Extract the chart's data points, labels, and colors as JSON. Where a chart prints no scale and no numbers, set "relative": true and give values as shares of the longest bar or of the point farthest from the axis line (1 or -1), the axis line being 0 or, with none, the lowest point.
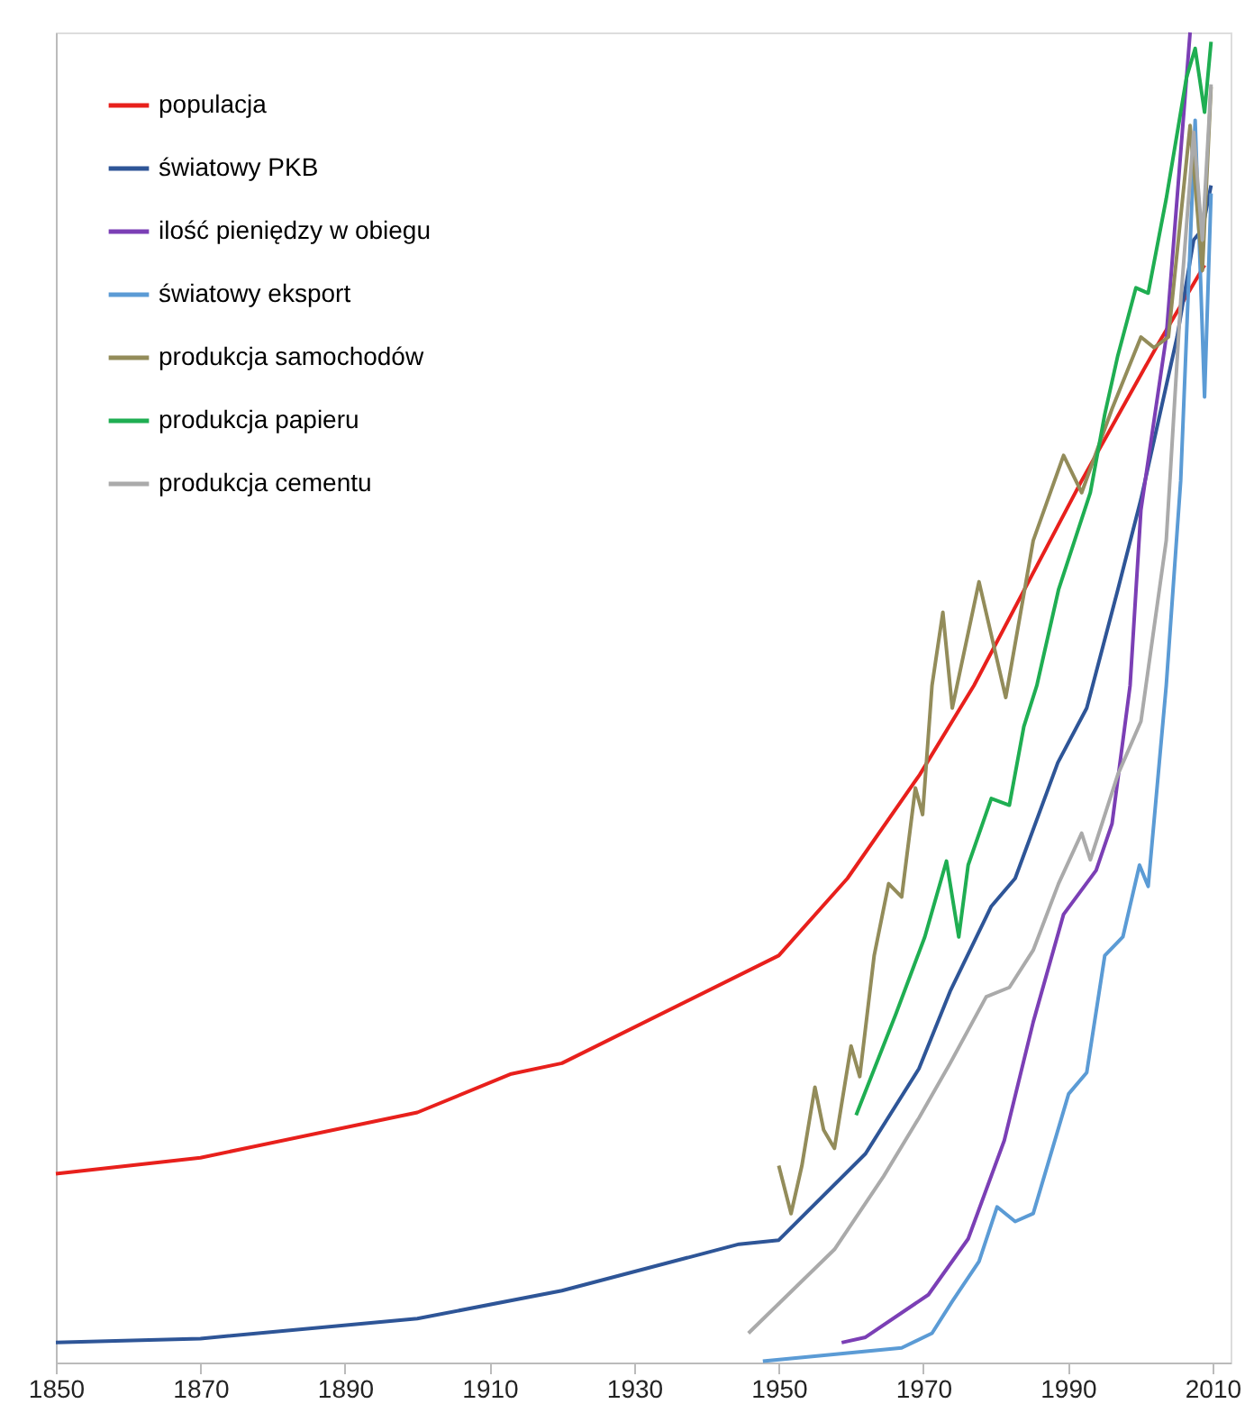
{
  "chart_data": {
    "type": "line",
    "relative": true,
    "xlim": [
      1850,
      2012.5
    ],
    "xticks": [
      1850,
      1870,
      1890,
      1910,
      1930,
      1950,
      1970,
      1990,
      2010
    ],
    "grid": false,
    "legend": "top left",
    "marker": "none",
    "line_style": "solid",
    "series": [
      {
        "name": "populacja",
        "color": "#e8201c",
        "x": [
          1850,
          1870,
          1900,
          1913,
          1920,
          1950,
          1959.5,
          1969.5,
          1977,
          1991.9,
          2002.6,
          2008.9
        ],
        "values": [
          0.142,
          0.154,
          0.188,
          0.217,
          0.225,
          0.306,
          0.364,
          0.442,
          0.509,
          0.663,
          0.767,
          0.825
        ]
      },
      {
        "name": "światowy PKB",
        "color": "#2e5597",
        "x": [
          1850,
          1870,
          1900,
          1920,
          1944.5,
          1950,
          1962,
          1969.4,
          1973.7,
          1979.4,
          1982.7,
          1988.6,
          1992.6,
          1996.9,
          2000.1,
          2005.1,
          2007.4,
          2008.6,
          2009.8
        ],
        "values": [
          0.015,
          0.018,
          0.033,
          0.054,
          0.089,
          0.092,
          0.157,
          0.221,
          0.279,
          0.343,
          0.364,
          0.451,
          0.492,
          0.581,
          0.649,
          0.771,
          0.844,
          0.852,
          0.885
        ]
      },
      {
        "name": "ilość pieniędzy w obiegu",
        "color": "#7b3fb5",
        "x": [
          1958.7,
          1962,
          1970.7,
          1976.2,
          1981.2,
          1985.2,
          1989.4,
          1993.9,
          1996.1,
          1998.6,
          2000.1,
          2003.6,
          2006.9
        ],
        "values": [
          0.015,
          0.019,
          0.051,
          0.093,
          0.167,
          0.256,
          0.337,
          0.37,
          0.405,
          0.509,
          0.641,
          0.771,
          1.0
        ]
      },
      {
        "name": "światowy eksport",
        "color": "#5b9bd5",
        "x": [
          1947.8,
          1967,
          1971.2,
          1974,
          1977.7,
          1980.2,
          1982.7,
          1985.2,
          1990.1,
          1992.6,
          1995.1,
          1997.6,
          1999.9,
          2001.1,
          2003.6,
          2005.6,
          2007.6,
          2008.9,
          2009.8
        ],
        "values": [
          0.001,
          0.011,
          0.022,
          0.046,
          0.076,
          0.117,
          0.106,
          0.112,
          0.202,
          0.218,
          0.306,
          0.32,
          0.374,
          0.358,
          0.509,
          0.663,
          0.934,
          0.726,
          0.879
        ]
      },
      {
        "name": "produkcja samochodów",
        "color": "#938c5a",
        "x": [
          1950,
          1951.7,
          1953.2,
          1955,
          1956.2,
          1957.7,
          1960,
          1961.2,
          1963.2,
          1965.2,
          1967,
          1968.9,
          1969.9,
          1971.2,
          1972.7,
          1974,
          1977.7,
          1981.4,
          1985.2,
          1989.4,
          1991.9,
          1996.1,
          2000.1,
          2001.9,
          2003.9,
          2006.9,
          2008.6,
          2009.8
        ],
        "values": [
          0.148,
          0.112,
          0.148,
          0.207,
          0.175,
          0.161,
          0.238,
          0.215,
          0.306,
          0.36,
          0.35,
          0.432,
          0.412,
          0.509,
          0.564,
          0.492,
          0.587,
          0.5,
          0.618,
          0.682,
          0.654,
          0.717,
          0.771,
          0.763,
          0.771,
          0.93,
          0.821,
          0.959
        ]
      },
      {
        "name": "produkcja papieru",
        "color": "#1fae52",
        "x": [
          1960.7,
          1966.2,
          1970.2,
          1973.2,
          1974.9,
          1976.2,
          1979.4,
          1981.9,
          1983.9,
          1985.7,
          1988.7,
          1993.1,
          1995.1,
          1996.9,
          1999.4,
          2001.1,
          2003.6,
          2006.4,
          2007.6,
          2008.9,
          2009.8
        ],
        "values": [
          0.186,
          0.262,
          0.32,
          0.377,
          0.32,
          0.374,
          0.424,
          0.419,
          0.478,
          0.509,
          0.581,
          0.654,
          0.713,
          0.757,
          0.808,
          0.804,
          0.875,
          0.966,
          0.988,
          0.94,
          0.993
        ]
      },
      {
        "name": "produkcja cementu",
        "color": "#aaaaaa",
        "x": [
          1945.8,
          1957.7,
          1964.5,
          1969.4,
          1973.7,
          1978.7,
          1981.9,
          1985.2,
          1988.7,
          1991.9,
          1993.1,
          1996.9,
          2000.1,
          2003.6,
          2005.6,
          2007.4,
          2008.6,
          2009.8
        ],
        "values": [
          0.022,
          0.085,
          0.14,
          0.184,
          0.225,
          0.275,
          0.282,
          0.31,
          0.36,
          0.398,
          0.378,
          0.442,
          0.482,
          0.618,
          0.798,
          0.925,
          0.844,
          0.961
        ]
      }
    ]
  }
}
